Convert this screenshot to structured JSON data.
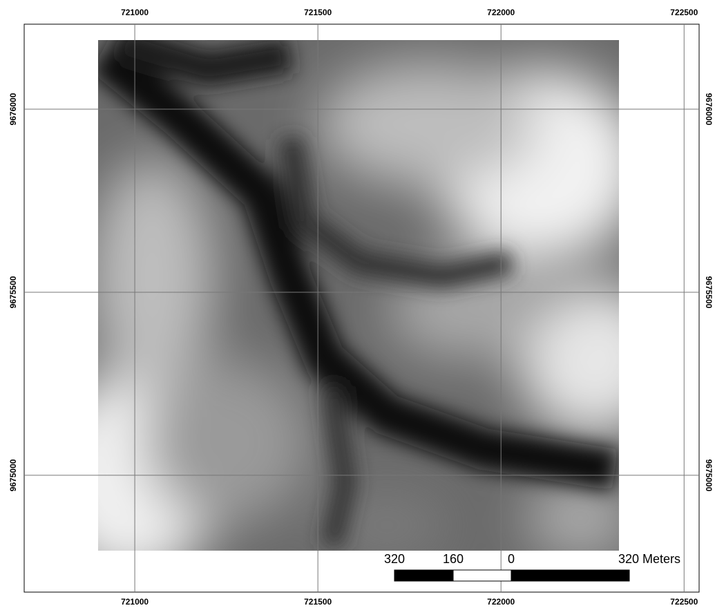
{
  "map": {
    "xlim": [
      720698,
      722541
    ],
    "ylim": [
      9674681,
      9676232
    ],
    "xticks": [
      721000,
      721500,
      722000,
      722500
    ],
    "yticks": [
      9676000,
      9675500,
      9675000
    ],
    "scale_bar": {
      "labels": [
        "320",
        "160",
        "0",
        "320 Meters"
      ]
    }
  }
}
